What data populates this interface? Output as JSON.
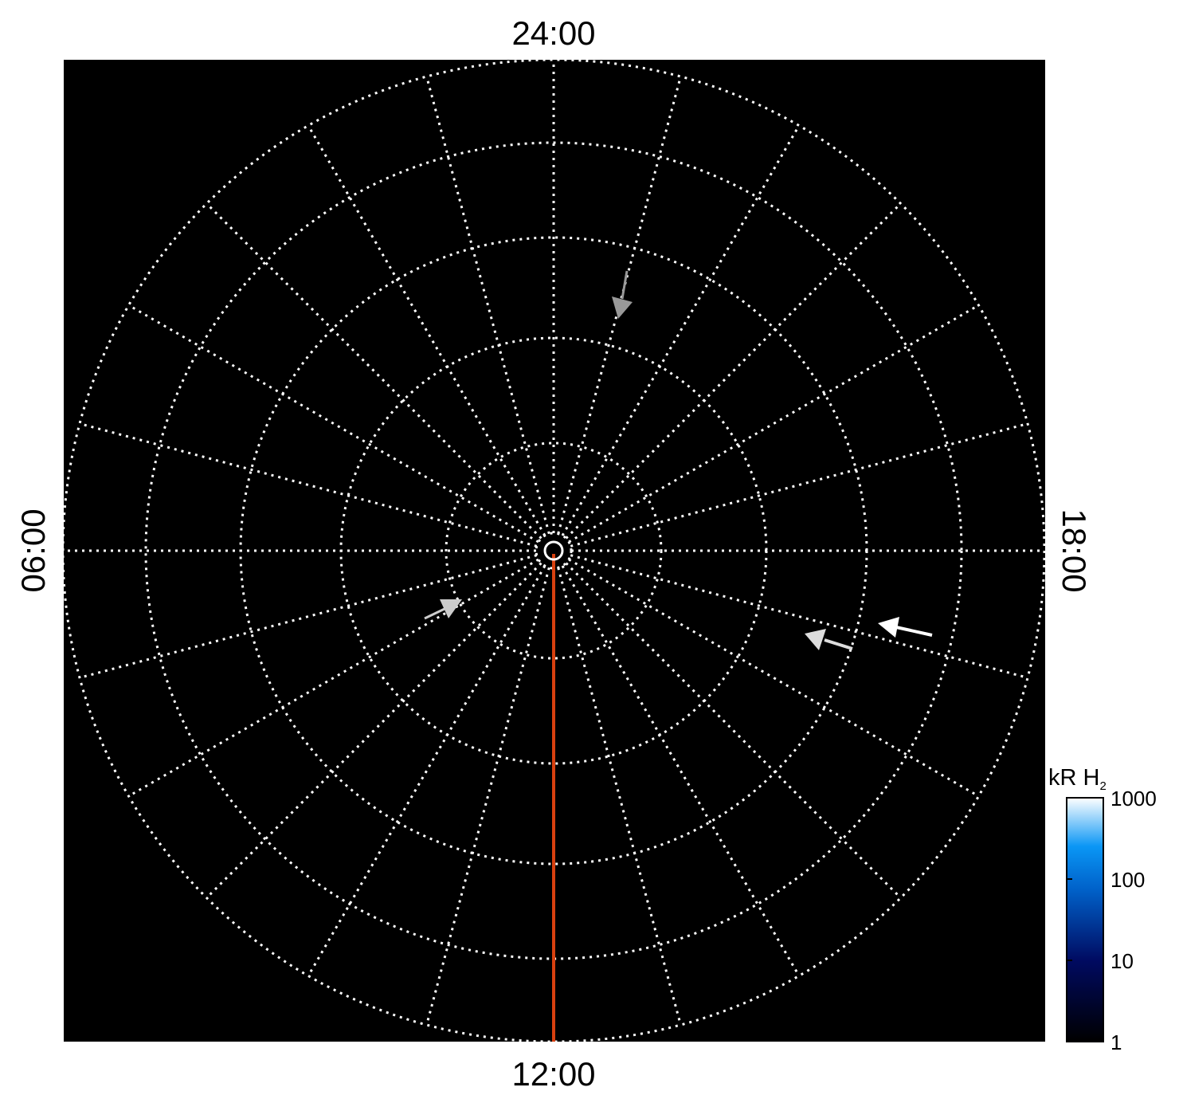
{
  "chart_data": {
    "type": "polar",
    "projection": "polar local-time map",
    "local_time_labels": {
      "top": "24:00",
      "bottom": "12:00",
      "left": "06:00",
      "right": "18:00"
    },
    "radial_lines_every_hours": 1,
    "background": "#000000",
    "grid": true,
    "highlight_meridian": {
      "local_time": "12:00",
      "color": "#d8400f"
    },
    "colorbar": {
      "label": "kR H",
      "label_subscript": "2",
      "scale": "log",
      "range": [
        1,
        1000
      ],
      "ticks": [
        "1",
        "10",
        "100",
        "1000"
      ],
      "colors": [
        "#000000",
        "#000a60",
        "#0a8cf0",
        "#ffffff"
      ],
      "placement": "bottom-right"
    },
    "annotations": [
      {
        "type": "arrow",
        "color": "#999999",
        "direction": "down"
      },
      {
        "type": "arrow",
        "color": "#cccccc",
        "direction": "up-right"
      },
      {
        "type": "arrow",
        "color": "#dddddd",
        "direction": "left"
      },
      {
        "type": "arrow",
        "color": "#ffffff",
        "direction": "left"
      }
    ]
  }
}
